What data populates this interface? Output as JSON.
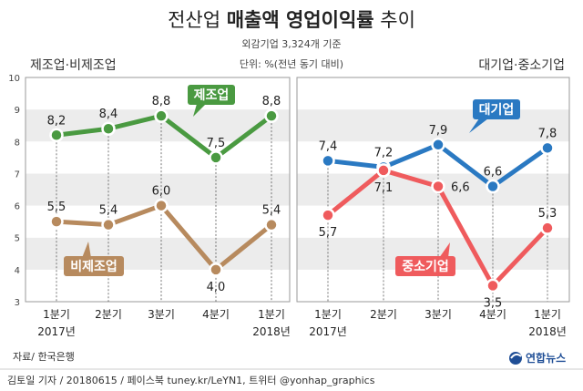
{
  "header": {
    "title_plain": "전산업",
    "title_bold": "매출액 영업이익률",
    "title_suffix": "추이",
    "note": "외감기업 3,324개 기준",
    "unit": "단위: %(전년 동기 대비)"
  },
  "footer": {
    "source": "자료/ 한국은행",
    "credit": "김토일 기자 / 20180615 / 페이스북 tuney.kr/LeYN1, 트위터 @yonhap_graphics",
    "brand": "연합뉴스"
  },
  "colors": {
    "green": "#4a9a41",
    "brown": "#b78a5e",
    "blue": "#2a79c2",
    "red": "#ef5b5d",
    "band": "#ececec"
  },
  "chart_data": [
    {
      "type": "line",
      "panel_title": "제조업·비제조업",
      "categories": [
        "1분기",
        "2분기",
        "3분기",
        "4분기",
        "1분기"
      ],
      "year_labels": [
        "2017년",
        "",
        "",
        "",
        "2018년"
      ],
      "ylim": [
        3,
        10
      ],
      "yticks": [
        3,
        4,
        5,
        6,
        7,
        8,
        9,
        10
      ],
      "series": [
        {
          "name": "제조업",
          "color": "#4a9a41",
          "values": [
            8.2,
            8.4,
            8.8,
            7.5,
            8.8
          ],
          "labels": [
            "8,2",
            "8,4",
            "8,8",
            "7,5",
            "8,8"
          ],
          "label_pos": [
            "above",
            "above",
            "above",
            "above",
            "above"
          ]
        },
        {
          "name": "비제조업",
          "color": "#b78a5e",
          "values": [
            5.5,
            5.4,
            6.0,
            4.0,
            5.4
          ],
          "labels": [
            "5,5",
            "5,4",
            "6,0",
            "4,0",
            "5,4"
          ],
          "label_pos": [
            "above",
            "above",
            "above",
            "below",
            "above"
          ]
        }
      ]
    },
    {
      "type": "line",
      "panel_title": "대기업·중소기업",
      "categories": [
        "1분기",
        "2분기",
        "3분기",
        "4분기",
        "1분기"
      ],
      "year_labels": [
        "2017년",
        "",
        "",
        "",
        "2018년"
      ],
      "ylim": [
        3,
        10
      ],
      "series": [
        {
          "name": "대기업",
          "color": "#2a79c2",
          "values": [
            7.4,
            7.2,
            7.9,
            6.6,
            7.8
          ],
          "labels": [
            "7,4",
            "7,2",
            "7,9",
            "6,6",
            "7,8"
          ],
          "label_pos": [
            "above",
            "above",
            "above",
            "above",
            "above"
          ]
        },
        {
          "name": "중소기업",
          "color": "#ef5b5d",
          "values": [
            5.7,
            7.1,
            6.6,
            3.5,
            5.3
          ],
          "labels": [
            "5,7",
            "7,1",
            "6,6",
            "3,5",
            "5,3"
          ],
          "label_pos": [
            "below",
            "below",
            "right",
            "below",
            "above"
          ]
        }
      ]
    }
  ]
}
